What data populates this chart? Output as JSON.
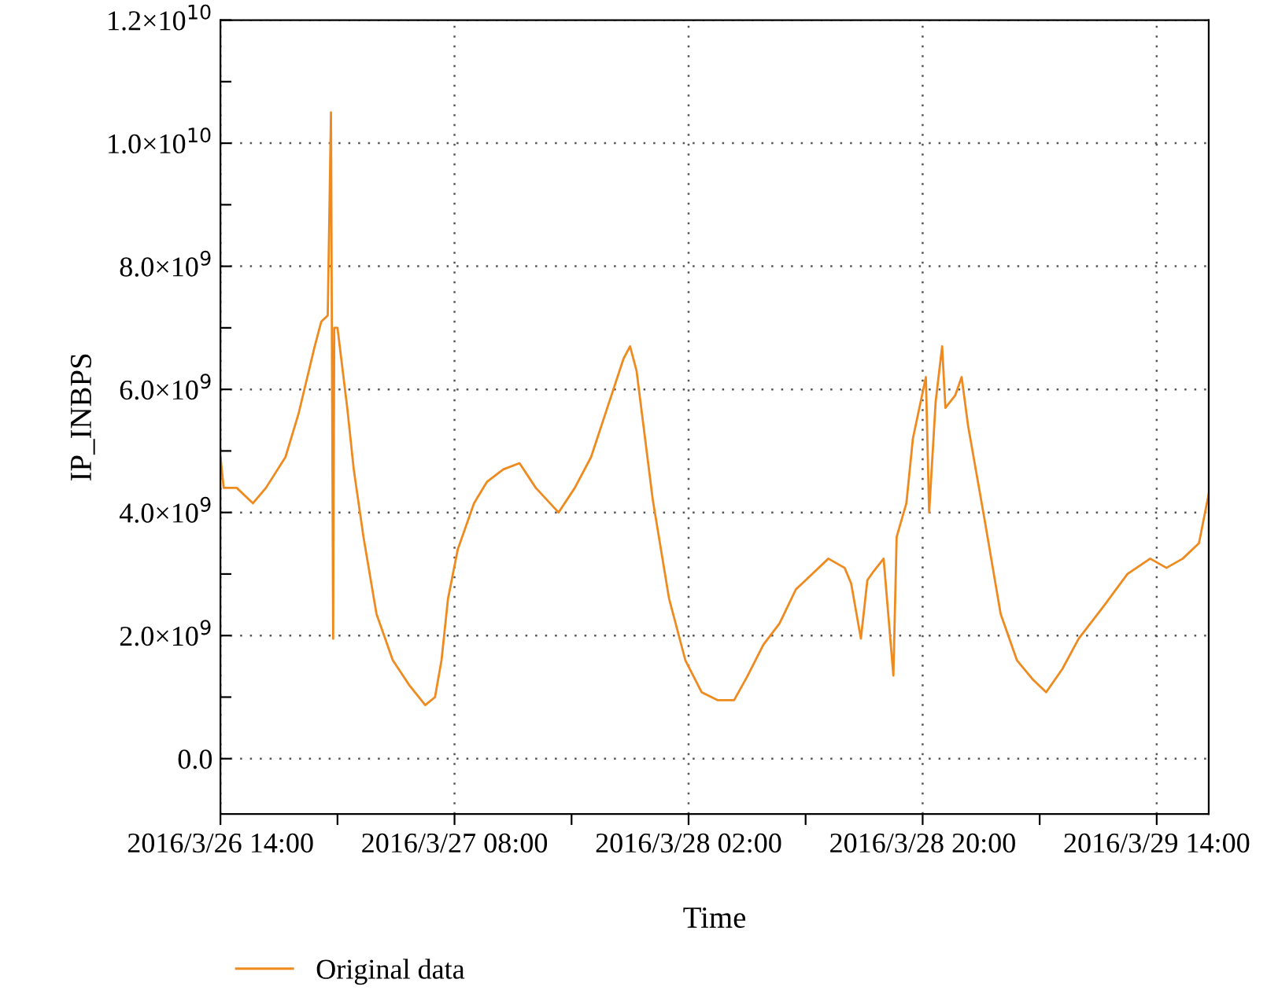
{
  "chart_data": {
    "type": "line",
    "xlabel": "Time",
    "ylabel": "IP_INBPS",
    "legend": "bottom",
    "grid": true,
    "line_style": "solid",
    "marker": "none",
    "xlim": [
      "2016-03-26T14:00",
      "2016-03-29T18:00"
    ],
    "xticks": [
      {
        "value": "2016-03-26T14:00",
        "label": "2016/3/26 14:00"
      },
      {
        "value": "2016-03-26T23:00",
        "label": null
      },
      {
        "value": "2016-03-27T08:00",
        "label": "2016/3/27 08:00"
      },
      {
        "value": "2016-03-27T17:00",
        "label": null
      },
      {
        "value": "2016-03-28T02:00",
        "label": "2016/3/28 02:00"
      },
      {
        "value": "2016-03-28T11:00",
        "label": null
      },
      {
        "value": "2016-03-28T20:00",
        "label": "2016/3/28 20:00"
      },
      {
        "value": "2016-03-29T05:00",
        "label": null
      },
      {
        "value": "2016-03-29T14:00",
        "label": "2016/3/29 14:00"
      }
    ],
    "ylim": [
      -900000000,
      12000000000
    ],
    "yticks": [
      {
        "value": 0,
        "label": "0.0"
      },
      {
        "value": 1000000000,
        "label": null
      },
      {
        "value": 2000000000,
        "label": "2.0×10$^{9}$"
      },
      {
        "value": 3000000000,
        "label": null
      },
      {
        "value": 4000000000,
        "label": "4.0×10$^{9}$"
      },
      {
        "value": 5000000000,
        "label": null
      },
      {
        "value": 6000000000,
        "label": "6.0×10$^{9}$"
      },
      {
        "value": 7000000000,
        "label": null
      },
      {
        "value": 8000000000,
        "label": "8.0×10$^{9}$"
      },
      {
        "value": 9000000000,
        "label": null
      },
      {
        "value": 10000000000,
        "label": "1.0×10$^{10}$"
      },
      {
        "value": 11000000000,
        "label": null
      },
      {
        "value": 12000000000,
        "label": "1.2×10$^{10}$"
      }
    ],
    "series": [
      {
        "name": "Original data",
        "color": "#ef8a1f",
        "x": [
          "2016-03-26T14:00",
          "2016-03-26T14:15",
          "2016-03-26T15:15",
          "2016-03-26T16:30",
          "2016-03-26T17:30",
          "2016-03-26T19:00",
          "2016-03-26T20:00",
          "2016-03-26T21:15",
          "2016-03-26T21:45",
          "2016-03-26T22:15",
          "2016-03-26T22:30",
          "2016-03-26T22:40",
          "2016-03-26T22:45",
          "2016-03-26T23:00",
          "2016-03-26T23:45",
          "2016-03-27T00:15",
          "2016-03-27T01:00",
          "2016-03-27T02:00",
          "2016-03-27T03:15",
          "2016-03-27T04:30",
          "2016-03-27T05:45",
          "2016-03-27T06:30",
          "2016-03-27T07:00",
          "2016-03-27T07:30",
          "2016-03-27T08:15",
          "2016-03-27T09:30",
          "2016-03-27T10:30",
          "2016-03-27T11:45",
          "2016-03-27T13:00",
          "2016-03-27T14:15",
          "2016-03-27T16:00",
          "2016-03-27T17:15",
          "2016-03-27T18:30",
          "2016-03-27T19:45",
          "2016-03-27T21:00",
          "2016-03-27T21:30",
          "2016-03-27T22:00",
          "2016-03-27T23:15",
          "2016-03-28T00:30",
          "2016-03-28T01:45",
          "2016-03-28T03:00",
          "2016-03-28T04:15",
          "2016-03-28T05:30",
          "2016-03-28T06:30",
          "2016-03-28T07:45",
          "2016-03-28T09:00",
          "2016-03-28T10:15",
          "2016-03-28T11:30",
          "2016-03-28T12:45",
          "2016-03-28T14:00",
          "2016-03-28T14:30",
          "2016-03-28T15:15",
          "2016-03-28T15:45",
          "2016-03-28T16:15",
          "2016-03-28T17:00",
          "2016-03-28T17:45",
          "2016-03-28T18:00",
          "2016-03-28T18:45",
          "2016-03-28T19:15",
          "2016-03-28T20:15",
          "2016-03-28T20:30",
          "2016-03-28T21:00",
          "2016-03-28T21:30",
          "2016-03-28T21:45",
          "2016-03-28T22:30",
          "2016-03-28T23:00",
          "2016-03-28T23:30",
          "2016-03-29T00:45",
          "2016-03-29T02:00",
          "2016-03-29T03:15",
          "2016-03-29T04:30",
          "2016-03-29T05:30",
          "2016-03-29T06:45",
          "2016-03-29T08:00",
          "2016-03-29T10:00",
          "2016-03-29T11:45",
          "2016-03-29T13:30",
          "2016-03-29T14:45",
          "2016-03-29T16:00",
          "2016-03-29T17:15",
          "2016-03-29T18:00"
        ],
        "values": [
          4900000000,
          4400000000,
          4400000000,
          4150000000,
          4400000000,
          4900000000,
          5600000000,
          6700000000,
          7100000000,
          7200000000,
          10500000000,
          1950000000,
          7000000000,
          7000000000,
          5700000000,
          4700000000,
          3600000000,
          2350000000,
          1600000000,
          1200000000,
          870000000,
          1000000000,
          1600000000,
          2600000000,
          3400000000,
          4150000000,
          4500000000,
          4700000000,
          4800000000,
          4400000000,
          4000000000,
          4400000000,
          4900000000,
          5700000000,
          6500000000,
          6700000000,
          6300000000,
          4200000000,
          2600000000,
          1600000000,
          1080000000,
          950000000,
          950000000,
          1330000000,
          1850000000,
          2200000000,
          2750000000,
          3000000000,
          3250000000,
          3100000000,
          2850000000,
          1950000000,
          2900000000,
          3050000000,
          3250000000,
          1350000000,
          3600000000,
          4150000000,
          5200000000,
          6200000000,
          4000000000,
          5800000000,
          6700000000,
          5700000000,
          5900000000,
          6200000000,
          5400000000,
          3900000000,
          2350000000,
          1600000000,
          1280000000,
          1080000000,
          1460000000,
          1950000000,
          2500000000,
          3000000000,
          3250000000,
          3100000000,
          3250000000,
          3500000000,
          4300000000
        ]
      }
    ]
  }
}
